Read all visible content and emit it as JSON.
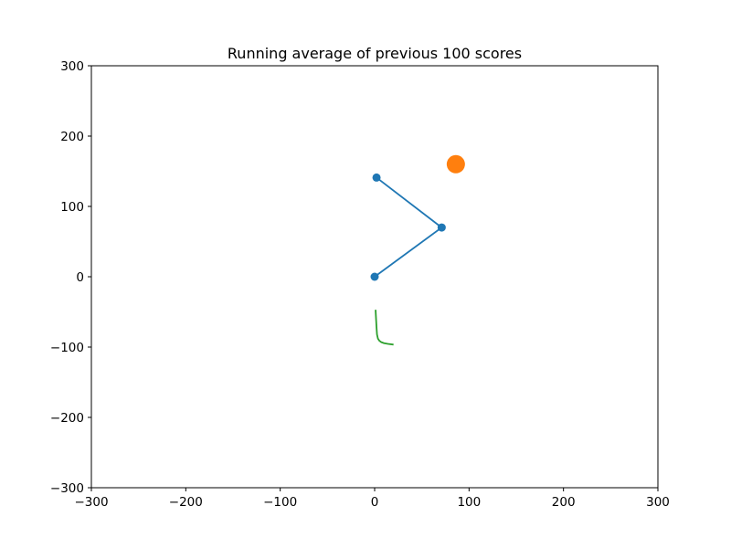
{
  "chart_data": {
    "type": "line",
    "title": "Running average of previous 100 scores",
    "xlabel": "",
    "ylabel": "",
    "xlim": [
      -300,
      300
    ],
    "ylim": [
      -300,
      300
    ],
    "grid": false,
    "xticks": [
      "−300",
      "−200",
      "−100",
      "0",
      "100",
      "200",
      "300"
    ],
    "xtick_values": [
      -300,
      -200,
      -100,
      0,
      100,
      200,
      300
    ],
    "yticks": [
      "−300",
      "−200",
      "−100",
      "0",
      "100",
      "200",
      "300"
    ],
    "ytick_values": [
      -300,
      -200,
      -100,
      0,
      100,
      200,
      300
    ],
    "series": [
      {
        "type": "line-with-markers",
        "color": "#1f77b4",
        "x": [
          0,
          71,
          2
        ],
        "y": [
          0,
          70,
          141
        ]
      },
      {
        "type": "scatter",
        "color": "#ff7f0e",
        "x": [
          86
        ],
        "y": [
          160
        ]
      },
      {
        "type": "line",
        "color": "#2ca02c",
        "x": [
          1,
          1.5,
          2,
          2.5,
          3.5,
          5,
          7,
          10,
          14,
          20
        ],
        "y": [
          -47,
          -60,
          -72,
          -82,
          -88,
          -91,
          -93,
          -94.5,
          -95.5,
          -96.5
        ]
      }
    ]
  }
}
